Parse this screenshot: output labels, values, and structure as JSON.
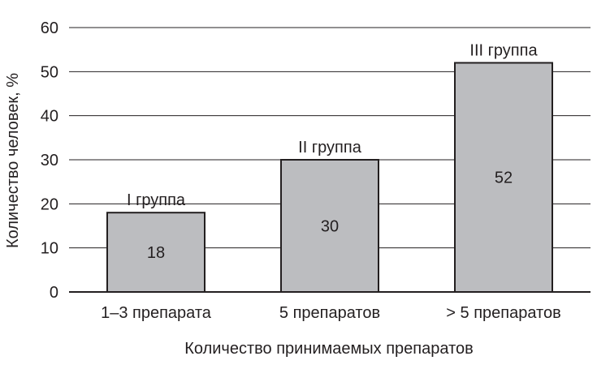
{
  "chart_data": {
    "type": "bar",
    "categories": [
      "1–3 препарата",
      "5 препаратов",
      "> 5 препаратов"
    ],
    "values": [
      18,
      30,
      52
    ],
    "bar_labels": [
      "I группа",
      "II группа",
      "III группа"
    ],
    "value_labels": [
      "18",
      "30",
      "52"
    ],
    "title": "",
    "xlabel": "Количество принимаемых препаратов",
    "ylabel": "Количество человек, %",
    "ylim": [
      0,
      60
    ],
    "yticks": [
      0,
      10,
      20,
      30,
      40,
      50,
      60
    ],
    "grid": true,
    "colors": {
      "bar_fill": "#bcbdc0",
      "bar_stroke": "#231f20",
      "grid": "#231f20",
      "text": "#231f20"
    }
  }
}
